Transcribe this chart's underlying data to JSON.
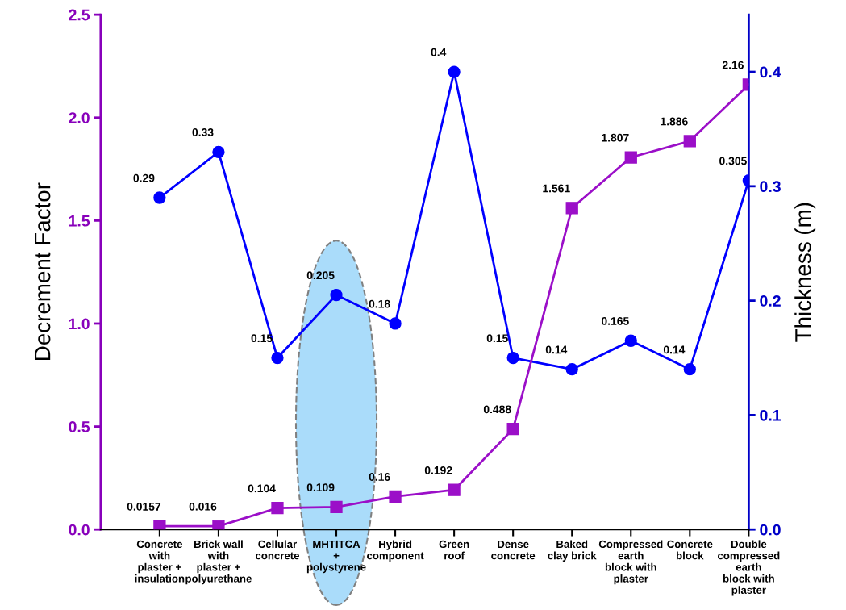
{
  "chart_data": {
    "type": "line",
    "categories": [
      "Concrete\nwith\nplaster +\ninsulation",
      "Brick wall\nwith\nplaster +\npolyurethane",
      "Cellular\nconcrete",
      "MHTITCA\n+\npolystyrene",
      "Hybrid\ncomponent",
      "Green\nroof",
      "Dense\nconcrete",
      "Baked\nclay brick",
      "Compressed\nearth\nblock with\nplaster",
      "Concrete\nblock",
      "Double\ncompressed\nearth\nblock with\nplaster"
    ],
    "ylabel": "Decrement Factor",
    "y2label": "Thickness (m)",
    "series": [
      {
        "color": "#9b0fc8",
        "marker": "square",
        "values": [
          0.0157,
          0.016,
          0.104,
          0.109,
          0.16,
          0.192,
          0.488,
          1.561,
          1.807,
          1.886,
          2.16
        ]
      },
      {
        "color": "#0000ff",
        "marker": "circle",
        "axis": "y2",
        "values": [
          0.29,
          0.33,
          0.15,
          0.205,
          0.18,
          0.4,
          0.15,
          0.14,
          0.165,
          0.14,
          0.305
        ]
      }
    ],
    "ylim": [
      0,
      2.5
    ],
    "yticks": [
      {
        "value": 0,
        "label": "0.0"
      },
      {
        "value": 0.5,
        "label": "0.5"
      },
      {
        "value": 1,
        "label": "1.0"
      },
      {
        "value": 1.5,
        "label": "1.5"
      },
      {
        "value": 2,
        "label": "2.0"
      },
      {
        "value": 2.5,
        "label": "2.5"
      }
    ],
    "y2lim": [
      0,
      0.45
    ],
    "y2ticks": [
      {
        "value": 0,
        "label": "0.0"
      },
      {
        "value": 0.1,
        "label": "0.1"
      },
      {
        "value": 0.2,
        "label": "0.2"
      },
      {
        "value": 0.3,
        "label": "0.3"
      },
      {
        "value": 0.4,
        "label": "0.4"
      }
    ],
    "data_labels": true,
    "grid": false,
    "legend": false,
    "line_style": "solid"
  }
}
